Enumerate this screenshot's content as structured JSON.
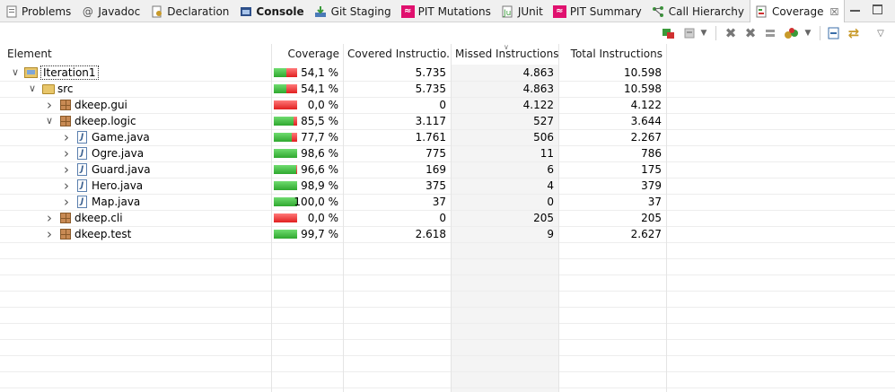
{
  "tabs": [
    {
      "label": "Problems",
      "icon": "problems-icon",
      "bold": false,
      "active": false
    },
    {
      "label": "Javadoc",
      "icon": "javadoc-icon",
      "bold": false,
      "active": false
    },
    {
      "label": "Declaration",
      "icon": "declaration-icon",
      "bold": false,
      "active": false
    },
    {
      "label": "Console",
      "icon": "console-icon",
      "bold": true,
      "active": false
    },
    {
      "label": "Git Staging",
      "icon": "git-staging-icon",
      "bold": false,
      "active": false
    },
    {
      "label": "PIT Mutations",
      "icon": "pit-mutations-icon",
      "bold": false,
      "active": false
    },
    {
      "label": "JUnit",
      "icon": "junit-icon",
      "bold": false,
      "active": false
    },
    {
      "label": "PIT Summary",
      "icon": "pit-summary-icon",
      "bold": false,
      "active": false
    },
    {
      "label": "Call Hierarchy",
      "icon": "call-hierarchy-icon",
      "bold": false,
      "active": false
    },
    {
      "label": "Coverage",
      "icon": "coverage-icon",
      "bold": false,
      "active": true
    }
  ],
  "colors": {
    "covered": "#2fa82f",
    "missed": "#e02020",
    "pit": "#e0106e"
  },
  "table": {
    "headers": {
      "element": "Element",
      "coverage": "Coverage",
      "covered": "Covered Instructio...",
      "missed": "Missed Instructions",
      "total": "Total Instructions"
    },
    "sorted_column": "missed",
    "rows": [
      {
        "name": "Iteration1",
        "type": "project",
        "depth": 0,
        "expander": "expanded",
        "selected": true,
        "coverage": "54,1 %",
        "ratio": 0.541,
        "covered": "5.735",
        "missed": "4.863",
        "total": "10.598"
      },
      {
        "name": "src",
        "type": "folder",
        "depth": 1,
        "expander": "expanded",
        "selected": false,
        "coverage": "54,1 %",
        "ratio": 0.541,
        "covered": "5.735",
        "missed": "4.863",
        "total": "10.598"
      },
      {
        "name": "dkeep.gui",
        "type": "package",
        "depth": 2,
        "expander": "collapsed",
        "selected": false,
        "coverage": "0,0 %",
        "ratio": 0.0,
        "covered": "0",
        "missed": "4.122",
        "total": "4.122"
      },
      {
        "name": "dkeep.logic",
        "type": "package",
        "depth": 2,
        "expander": "expanded",
        "selected": false,
        "coverage": "85,5 %",
        "ratio": 0.855,
        "covered": "3.117",
        "missed": "527",
        "total": "3.644"
      },
      {
        "name": "Game.java",
        "type": "java",
        "depth": 3,
        "expander": "collapsed",
        "selected": false,
        "coverage": "77,7 %",
        "ratio": 0.777,
        "covered": "1.761",
        "missed": "506",
        "total": "2.267"
      },
      {
        "name": "Ogre.java",
        "type": "java",
        "depth": 3,
        "expander": "collapsed",
        "selected": false,
        "coverage": "98,6 %",
        "ratio": 0.986,
        "covered": "775",
        "missed": "11",
        "total": "786"
      },
      {
        "name": "Guard.java",
        "type": "java",
        "depth": 3,
        "expander": "collapsed",
        "selected": false,
        "coverage": "96,6 %",
        "ratio": 0.966,
        "covered": "169",
        "missed": "6",
        "total": "175"
      },
      {
        "name": "Hero.java",
        "type": "java",
        "depth": 3,
        "expander": "collapsed",
        "selected": false,
        "coverage": "98,9 %",
        "ratio": 0.989,
        "covered": "375",
        "missed": "4",
        "total": "379"
      },
      {
        "name": "Map.java",
        "type": "java",
        "depth": 3,
        "expander": "collapsed",
        "selected": false,
        "coverage": "100,0 %",
        "ratio": 1.0,
        "covered": "37",
        "missed": "0",
        "total": "37"
      },
      {
        "name": "dkeep.cli",
        "type": "package",
        "depth": 2,
        "expander": "collapsed",
        "selected": false,
        "coverage": "0,0 %",
        "ratio": 0.0,
        "covered": "0",
        "missed": "205",
        "total": "205"
      },
      {
        "name": "dkeep.test",
        "type": "package",
        "depth": 2,
        "expander": "collapsed",
        "selected": false,
        "coverage": "99,7 %",
        "ratio": 0.997,
        "covered": "2.618",
        "missed": "9",
        "total": "2.627"
      }
    ]
  },
  "toolbar_icons": [
    "relaunch-coverage-icon",
    "coverage-session-icon",
    "remove-session-icon",
    "remove-all-sessions-icon",
    "merge-sessions-icon",
    "select-counters-icon",
    "collapse-all-icon",
    "link-with-editor-icon",
    "view-menu-icon"
  ]
}
